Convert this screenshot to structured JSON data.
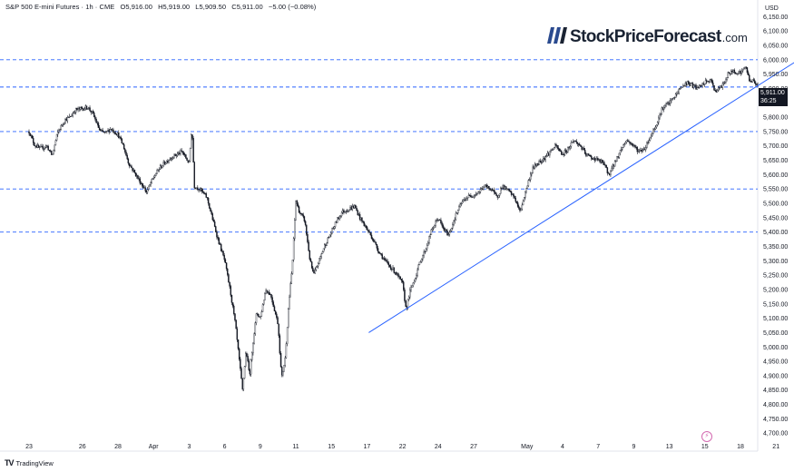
{
  "header": {
    "symbol": "S&P 500 E-mini Futures · 1h · CME",
    "open": "O5,916.00",
    "high": "H5,919.00",
    "low": "L5,909.50",
    "close": "C5,911.00",
    "change": "−5.00 (−0.08%)"
  },
  "logo": {
    "main": "StockPriceForecast",
    "tld": ".com"
  },
  "footer": {
    "brand": "TradingView"
  },
  "colors": {
    "candle": "#131722",
    "level": "#2962ff",
    "trend": "#2962ff",
    "tag": "#131722"
  },
  "price_tag": {
    "price": "5,911.00",
    "countdown": "36:25"
  },
  "chart_data": {
    "type": "candlestick",
    "title": "S&P 500 E-mini Futures · 1h · CME",
    "currency": "USD",
    "y_ticks": [
      "6,150.00",
      "6,100.00",
      "6,050.00",
      "6,000.00",
      "5,950.00",
      "5,900.00",
      "5,850.00",
      "5,800.00",
      "5,750.00",
      "5,700.00",
      "5,650.00",
      "5,600.00",
      "5,550.00",
      "5,500.00",
      "5,450.00",
      "5,400.00",
      "5,350.00",
      "5,300.00",
      "5,250.00",
      "5,200.00",
      "5,150.00",
      "5,100.00",
      "5,050.00",
      "5,000.00",
      "4,950.00",
      "4,900.00",
      "4,850.00",
      "4,800.00",
      "4,750.00",
      "4,700.00"
    ],
    "ylim": [
      4688,
      6170
    ],
    "x_ticks": [
      {
        "label": "23",
        "idx": 0
      },
      {
        "label": "26",
        "idx": 3
      },
      {
        "label": "28",
        "idx": 5
      },
      {
        "label": "Apr",
        "idx": 7
      },
      {
        "label": "3",
        "idx": 9
      },
      {
        "label": "6",
        "idx": 11
      },
      {
        "label": "9",
        "idx": 13
      },
      {
        "label": "11",
        "idx": 15
      },
      {
        "label": "15",
        "idx": 17
      },
      {
        "label": "17",
        "idx": 19
      },
      {
        "label": "22",
        "idx": 21
      },
      {
        "label": "24",
        "idx": 23
      },
      {
        "label": "27",
        "idx": 25
      },
      {
        "label": "May",
        "idx": 28
      },
      {
        "label": "4",
        "idx": 30
      },
      {
        "label": "7",
        "idx": 32
      },
      {
        "label": "9",
        "idx": 34
      },
      {
        "label": "13",
        "idx": 36
      },
      {
        "label": "15",
        "idx": 38
      },
      {
        "label": "18",
        "idx": 40
      },
      {
        "label": "21",
        "idx": 42
      }
    ],
    "levels": [
      6000,
      5905,
      5750,
      5550,
      5400
    ],
    "trendline": {
      "from": {
        "idx": 19.1,
        "price": 5050
      },
      "to": {
        "idx": 43.4,
        "price": 6005
      }
    },
    "path": [
      [
        0.0,
        5750
      ],
      [
        0.3,
        5705
      ],
      [
        0.6,
        5690
      ],
      [
        1.0,
        5700
      ],
      [
        1.3,
        5665
      ],
      [
        1.6,
        5745
      ],
      [
        2.0,
        5790
      ],
      [
        2.3,
        5800
      ],
      [
        2.6,
        5825
      ],
      [
        3.0,
        5830
      ],
      [
        3.3,
        5835
      ],
      [
        3.6,
        5810
      ],
      [
        4.0,
        5750
      ],
      [
        4.3,
        5745
      ],
      [
        4.6,
        5760
      ],
      [
        5.0,
        5740
      ],
      [
        5.3,
        5700
      ],
      [
        5.6,
        5640
      ],
      [
        6.0,
        5600
      ],
      [
        6.3,
        5570
      ],
      [
        6.6,
        5540
      ],
      [
        7.0,
        5590
      ],
      [
        7.3,
        5620
      ],
      [
        7.6,
        5640
      ],
      [
        8.0,
        5660
      ],
      [
        8.3,
        5670
      ],
      [
        8.6,
        5680
      ],
      [
        9.0,
        5640
      ],
      [
        9.15,
        5770
      ],
      [
        9.3,
        5560
      ],
      [
        9.6,
        5550
      ],
      [
        10.0,
        5520
      ],
      [
        10.3,
        5450
      ],
      [
        10.6,
        5380
      ],
      [
        11.0,
        5300
      ],
      [
        11.3,
        5200
      ],
      [
        11.6,
        5080
      ],
      [
        12.0,
        4850
      ],
      [
        12.2,
        4990
      ],
      [
        12.4,
        4900
      ],
      [
        12.6,
        5020
      ],
      [
        12.8,
        5120
      ],
      [
        13.0,
        5100
      ],
      [
        13.3,
        5200
      ],
      [
        13.6,
        5180
      ],
      [
        14.0,
        5080
      ],
      [
        14.2,
        4890
      ],
      [
        14.4,
        4960
      ],
      [
        14.6,
        5150
      ],
      [
        14.8,
        5280
      ],
      [
        15.0,
        5510
      ],
      [
        15.2,
        5470
      ],
      [
        15.5,
        5440
      ],
      [
        15.8,
        5300
      ],
      [
        16.0,
        5250
      ],
      [
        16.3,
        5300
      ],
      [
        16.6,
        5350
      ],
      [
        17.0,
        5400
      ],
      [
        17.3,
        5440
      ],
      [
        17.6,
        5470
      ],
      [
        18.0,
        5480
      ],
      [
        18.3,
        5490
      ],
      [
        18.6,
        5450
      ],
      [
        19.0,
        5410
      ],
      [
        19.3,
        5380
      ],
      [
        19.6,
        5340
      ],
      [
        20.0,
        5300
      ],
      [
        20.3,
        5280
      ],
      [
        20.6,
        5260
      ],
      [
        21.0,
        5220
      ],
      [
        21.2,
        5130
      ],
      [
        21.4,
        5190
      ],
      [
        21.7,
        5240
      ],
      [
        22.0,
        5300
      ],
      [
        22.3,
        5340
      ],
      [
        22.6,
        5400
      ],
      [
        23.0,
        5450
      ],
      [
        23.3,
        5410
      ],
      [
        23.6,
        5390
      ],
      [
        24.0,
        5460
      ],
      [
        24.3,
        5500
      ],
      [
        24.6,
        5520
      ],
      [
        25.0,
        5530
      ],
      [
        25.3,
        5540
      ],
      [
        25.6,
        5560
      ],
      [
        26.0,
        5550
      ],
      [
        26.3,
        5520
      ],
      [
        26.6,
        5560
      ],
      [
        27.0,
        5540
      ],
      [
        27.3,
        5520
      ],
      [
        27.6,
        5470
      ],
      [
        28.0,
        5560
      ],
      [
        28.3,
        5620
      ],
      [
        28.6,
        5640
      ],
      [
        29.0,
        5660
      ],
      [
        29.3,
        5680
      ],
      [
        29.6,
        5700
      ],
      [
        30.0,
        5670
      ],
      [
        30.3,
        5690
      ],
      [
        30.6,
        5720
      ],
      [
        31.0,
        5700
      ],
      [
        31.3,
        5670
      ],
      [
        31.6,
        5660
      ],
      [
        32.0,
        5650
      ],
      [
        32.3,
        5640
      ],
      [
        32.6,
        5600
      ],
      [
        33.0,
        5650
      ],
      [
        33.3,
        5690
      ],
      [
        33.6,
        5720
      ],
      [
        34.0,
        5700
      ],
      [
        34.3,
        5680
      ],
      [
        34.6,
        5690
      ],
      [
        35.0,
        5740
      ],
      [
        35.3,
        5780
      ],
      [
        35.6,
        5830
      ],
      [
        36.0,
        5850
      ],
      [
        36.3,
        5870
      ],
      [
        36.6,
        5900
      ],
      [
        37.0,
        5920
      ],
      [
        37.3,
        5910
      ],
      [
        37.6,
        5900
      ],
      [
        38.0,
        5920
      ],
      [
        38.3,
        5930
      ],
      [
        38.6,
        5890
      ],
      [
        39.0,
        5910
      ],
      [
        39.3,
        5950
      ],
      [
        39.6,
        5960
      ],
      [
        40.0,
        5955
      ],
      [
        40.3,
        5975
      ],
      [
        40.5,
        5930
      ],
      [
        40.7,
        5925
      ],
      [
        41.0,
        5911
      ]
    ]
  }
}
